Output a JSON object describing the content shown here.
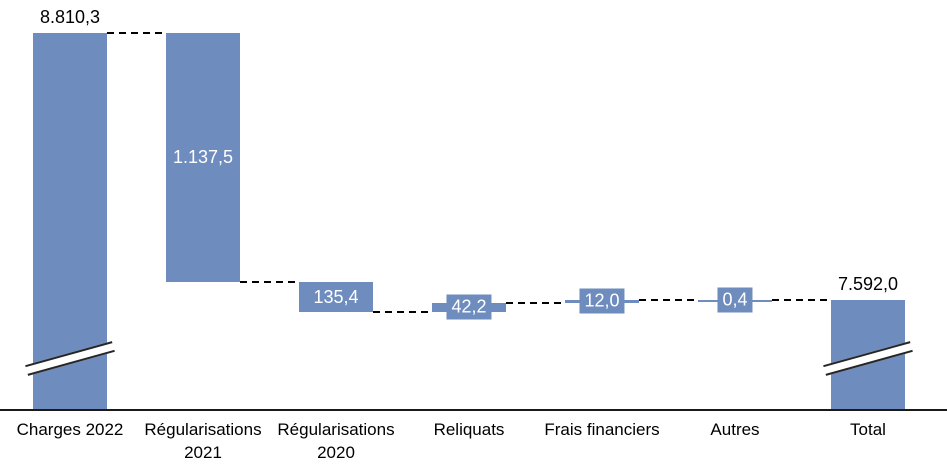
{
  "chart_data": {
    "type": "waterfall",
    "title": "",
    "orientation": "vertical-bars",
    "legend": "none",
    "grid": false,
    "value_axis_visible": false,
    "connector_style": "dashed",
    "axis_break_symbol": "double-slash",
    "number_format": "european (dot thousands, comma decimals)",
    "colors": {
      "bar": "#6E8CBE",
      "label_inside": "#FFFFFF",
      "label_outside": "#000000",
      "connector": "#000000",
      "axis_line": "#1A1A1A",
      "break_fill": "#FFFFFF",
      "break_line": "#262626",
      "background": "#FFFFFF"
    },
    "categories": [
      "Charges 2022",
      "Régularisations 2021",
      "Régularisations 2020",
      "Reliquats",
      "Frais financiers",
      "Autres",
      "Total"
    ],
    "start_value": 8810.3,
    "end_value": 7592.0,
    "bars": [
      {
        "category": "Charges 2022",
        "value": 8810.3,
        "display": "8.810,3",
        "kind": "start",
        "label_position": "above",
        "axis_break": true
      },
      {
        "category": "Régularisations 2021",
        "value": -1137.5,
        "display": "1.137,5",
        "kind": "decrease",
        "label_position": "inside",
        "axis_break": false
      },
      {
        "category": "Régularisations 2020",
        "value": -135.4,
        "display": "135,4",
        "kind": "decrease",
        "label_position": "inside",
        "axis_break": false
      },
      {
        "category": "Reliquats",
        "value": 42.2,
        "display": "42,2",
        "kind": "increase",
        "label_position": "box",
        "axis_break": false
      },
      {
        "category": "Frais financiers",
        "value": 12.0,
        "display": "12,0",
        "kind": "increase",
        "label_position": "box",
        "axis_break": false
      },
      {
        "category": "Autres",
        "value": 0.4,
        "display": "0,4",
        "kind": "increase",
        "label_position": "box",
        "axis_break": false
      },
      {
        "category": "Total",
        "value": 7592.0,
        "display": "7.592,0",
        "kind": "total",
        "label_position": "above",
        "axis_break": true
      }
    ]
  }
}
